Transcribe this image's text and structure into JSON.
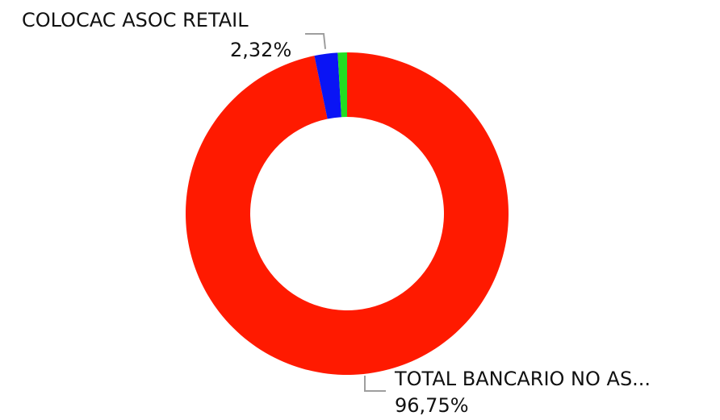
{
  "chart_data": {
    "type": "pie",
    "variant": "donut",
    "slices": [
      {
        "label": "TOTAL BANCARIO NO AS...",
        "value": 96.75,
        "value_label": "96,75%",
        "color": "#ff1a00"
      },
      {
        "label": "COLOCAC ASOC RETAIL",
        "value": 2.32,
        "value_label": "2,32%",
        "color": "#0a14f5"
      },
      {
        "label": "",
        "value": 0.93,
        "value_label": "",
        "color": "#22dd22"
      }
    ],
    "legend": "none",
    "leader_line_color": "#9e9e9e"
  }
}
